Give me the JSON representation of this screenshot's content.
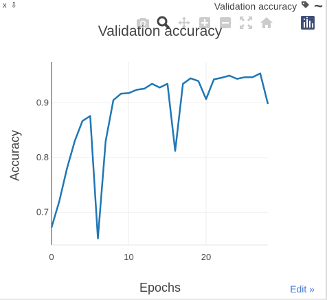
{
  "window": {
    "close_label": "x",
    "pin_label": "⇩",
    "title": "Validation accuracy",
    "tag_icon": "tag-icon",
    "menu_icon": "tilde-menu-icon"
  },
  "modebar": {
    "icons": [
      "camera-icon",
      "zoom-icon",
      "pan-icon",
      "zoom-in-icon",
      "zoom-out-icon",
      "autoscale-icon",
      "home-icon",
      "plotly-logo-icon"
    ],
    "icon_color": "#cccccc",
    "active_color": "#444444",
    "logo_color": "#3f4f75"
  },
  "edit_link": "Edit »",
  "chart_data": {
    "type": "line",
    "title": "Validation accuracy",
    "xlabel": "Epochs",
    "ylabel": "Accuracy",
    "xlim": [
      0,
      28
    ],
    "ylim": [
      0.64,
      0.975
    ],
    "x_ticks": [
      0,
      10,
      20
    ],
    "x_tick_labels": [
      "0",
      "10",
      "20"
    ],
    "y_ticks": [
      0.7,
      0.8,
      0.9
    ],
    "y_tick_labels": [
      "0.7",
      "0.8",
      "0.9"
    ],
    "grid": true,
    "series": [
      {
        "color": "#1f77b4",
        "x": [
          0,
          1,
          2,
          3,
          4,
          5,
          6,
          7,
          8,
          9,
          10,
          11,
          12,
          13,
          14,
          15,
          16,
          17,
          18,
          19,
          20,
          21,
          22,
          23,
          24,
          25,
          26,
          27,
          28
        ],
        "values": [
          0.672,
          0.72,
          0.78,
          0.83,
          0.867,
          0.876,
          0.652,
          0.83,
          0.905,
          0.917,
          0.918,
          0.924,
          0.926,
          0.935,
          0.928,
          0.935,
          0.812,
          0.935,
          0.945,
          0.94,
          0.907,
          0.943,
          0.946,
          0.95,
          0.944,
          0.947,
          0.947,
          0.954,
          0.898
        ]
      }
    ]
  }
}
